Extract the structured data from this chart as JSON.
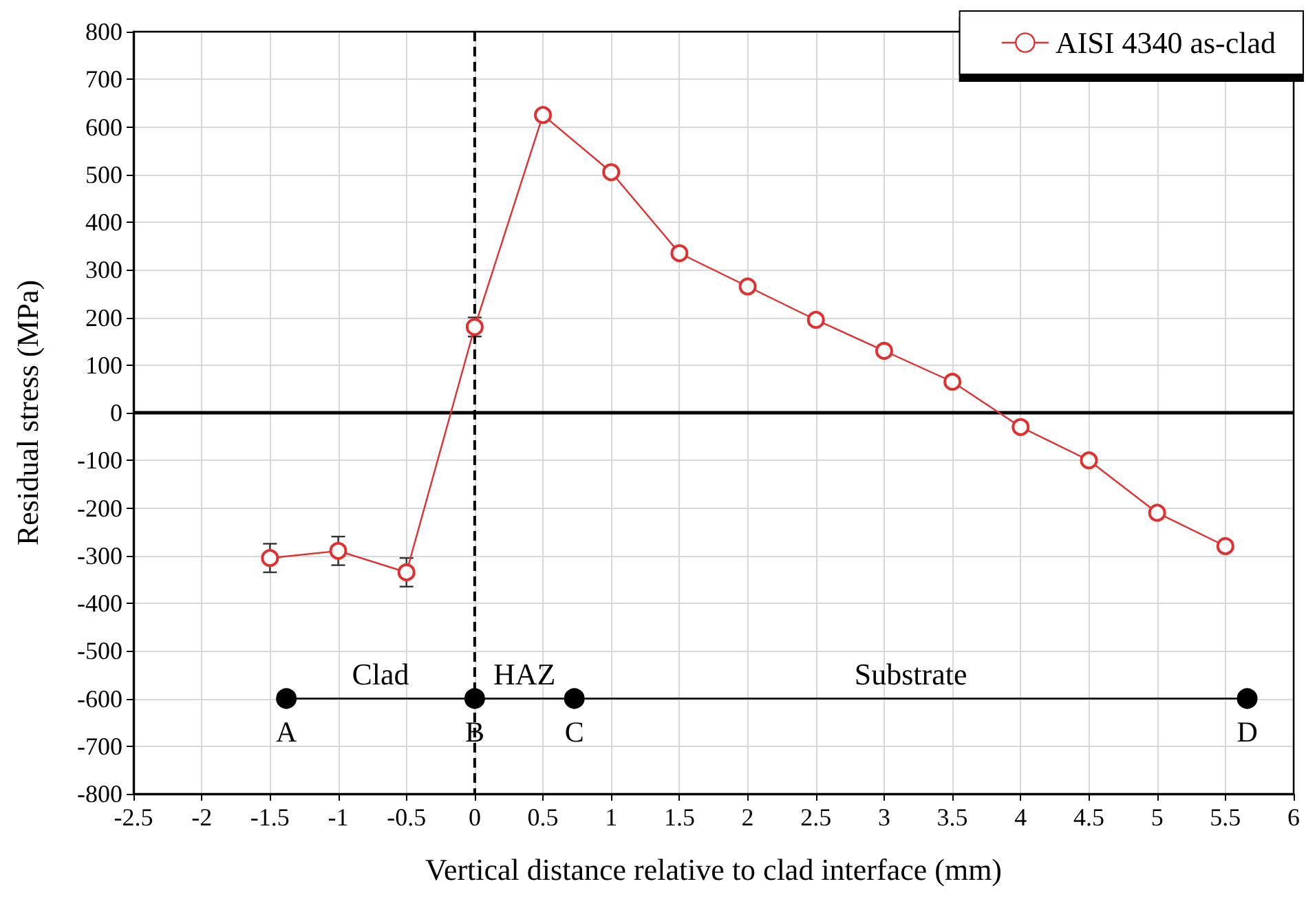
{
  "chart_data": {
    "type": "line",
    "xlabel": "Vertical distance relative to clad interface (mm)",
    "ylabel": "Residual stress (MPa)",
    "x": [
      -1.5,
      -1,
      -0.5,
      0,
      0.5,
      1,
      1.5,
      2,
      2.5,
      3,
      3.5,
      4,
      4.5,
      5,
      5.5
    ],
    "series": [
      {
        "name": "AISI 4340 as-clad",
        "color": "#e03030",
        "values": [
          -305,
          -290,
          -335,
          180,
          625,
          505,
          335,
          265,
          195,
          130,
          65,
          -30,
          -100,
          -210,
          -280
        ],
        "errors": [
          30,
          30,
          30,
          20,
          null,
          null,
          null,
          null,
          null,
          null,
          null,
          null,
          null,
          null,
          null
        ]
      },
      {
        "type": "line",
        "color": "#000000",
        "x": [
          -1.38,
          0,
          0.73,
          5.66
        ],
        "values": [
          -600,
          -600,
          -600,
          -600
        ],
        "value_labels": [
          "A",
          "B",
          "C",
          "D"
        ]
      }
    ],
    "xlim": [
      -2.5,
      6
    ],
    "xticks": [
      -2.5,
      -2,
      -1.5,
      -1,
      -0.5,
      0,
      0.5,
      1,
      1.5,
      2,
      2.5,
      3,
      3.5,
      4,
      4.5,
      5,
      5.5,
      6
    ],
    "ylim": [
      -800,
      800
    ],
    "yticks": [
      -800,
      -700,
      -600,
      -500,
      -400,
      -300,
      -200,
      -100,
      0,
      100,
      200,
      300,
      400,
      500,
      600,
      700,
      800
    ],
    "grid": true,
    "legend": "top right",
    "marker": "circle",
    "line_style": "solid",
    "ref_lines": [
      {
        "axis": "x",
        "value": 0,
        "color": "#000000",
        "line_style": "dashed"
      },
      {
        "axis": "y",
        "value": 0,
        "color": "#000000",
        "line_style": "solid"
      }
    ],
    "annotations": [
      "Clad",
      "HAZ",
      "Substrate"
    ]
  }
}
